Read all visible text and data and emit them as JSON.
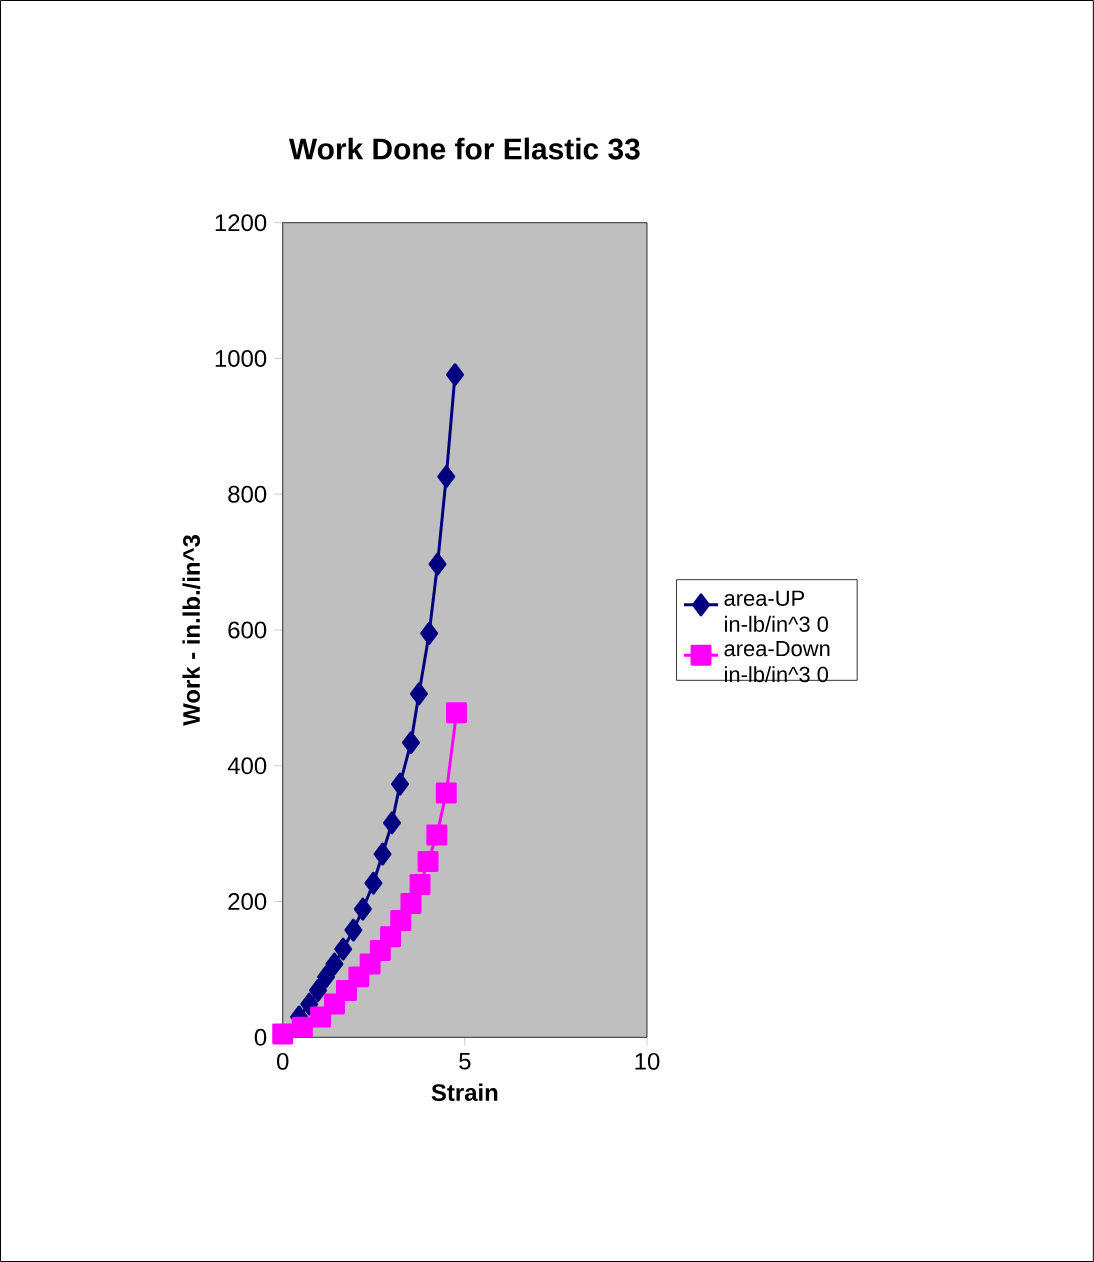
{
  "chart_data": {
    "type": "line",
    "title": "Work Done for Elastic 33",
    "xlabel": "Strain",
    "ylabel": "Work - in.lb./in^3",
    "xlim": [
      0,
      10
    ],
    "xticks": [
      0,
      5,
      10
    ],
    "ylim": [
      0,
      1200
    ],
    "yticks": [
      0,
      200,
      400,
      600,
      800,
      1000,
      1200
    ],
    "grid": false,
    "legend": "right",
    "series": [
      {
        "name": "area-UP in-lb/in^3 0",
        "color": "#000080",
        "marker": "diamond",
        "x": [
          0.45,
          0.73,
          0.97,
          1.19,
          1.42,
          1.66,
          1.94,
          2.2,
          2.49,
          2.74,
          3.0,
          3.22,
          3.52,
          3.74,
          4.02,
          4.25,
          4.49,
          4.73
        ],
        "values": [
          30,
          49,
          69,
          89,
          108,
          130,
          158,
          189,
          227,
          270,
          316,
          373,
          434,
          506,
          595,
          697,
          826,
          976
        ]
      },
      {
        "name": "area-Down in-lb/in^3 0",
        "color": "#ff00ff",
        "marker": "square",
        "x": [
          0,
          0.54,
          1.04,
          1.42,
          1.75,
          2.09,
          2.4,
          2.68,
          2.96,
          3.24,
          3.52,
          3.77,
          3.99,
          4.23,
          4.49,
          4.77
        ],
        "values": [
          5,
          15,
          30,
          49,
          69,
          89,
          108,
          128,
          148,
          172,
          197,
          225,
          259,
          298,
          360,
          478
        ]
      }
    ]
  }
}
